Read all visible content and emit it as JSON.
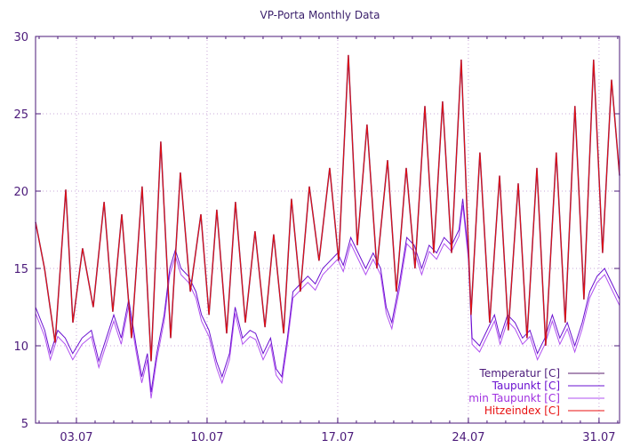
{
  "chart_data": {
    "type": "line",
    "title": "VP-Porta Monthly Data",
    "xlabel": "",
    "ylabel": "",
    "xlim": [
      0.81,
      32.1
    ],
    "ylim": [
      5,
      30
    ],
    "grid": true,
    "legend_position": "bottom-right",
    "y_ticks": [
      5,
      10,
      15,
      20,
      25,
      30
    ],
    "x_ticks": [
      {
        "day": 3,
        "label": "03.07"
      },
      {
        "day": 10,
        "label": "10.07"
      },
      {
        "day": 17,
        "label": "17.07"
      },
      {
        "day": 24,
        "label": "24.07"
      },
      {
        "day": 31,
        "label": "31.07"
      }
    ],
    "colors": {
      "axis": "#4b1a7a",
      "grid": "#c9a8d8",
      "Temperatur": "#5a1e6e",
      "Taupunkt": "#6a10d0",
      "min Taupunkt": "#b050f0",
      "Hitzeindex": "#e81010"
    },
    "temperature": {
      "x": [
        0.81,
        1.29,
        1.86,
        2.43,
        2.81,
        3.33,
        3.9,
        4.48,
        4.95,
        5.43,
        5.95,
        6.52,
        7.0,
        7.52,
        8.05,
        8.57,
        9.1,
        9.67,
        10.1,
        10.52,
        11.05,
        11.52,
        12.05,
        12.57,
        13.1,
        13.57,
        14.1,
        14.52,
        15.0,
        15.48,
        16.0,
        16.57,
        17.05,
        17.57,
        18.05,
        18.57,
        19.1,
        19.67,
        20.14,
        20.67,
        21.14,
        21.67,
        22.14,
        22.62,
        23.1,
        23.62,
        24.14,
        24.62,
        25.14,
        25.67,
        26.14,
        26.67,
        27.14,
        27.67,
        28.14,
        28.71,
        29.19,
        29.71,
        30.19,
        30.71,
        31.19,
        31.67,
        32.1
      ],
      "y": [
        18.0,
        15,
        10.2,
        20.1,
        11.5,
        16.3,
        12.5,
        19.3,
        12.2,
        18.5,
        10.5,
        20.3,
        9.0,
        23.2,
        10.5,
        21.2,
        13.5,
        18.5,
        12.0,
        18.8,
        10.8,
        19.3,
        11.5,
        17.4,
        11.2,
        17.2,
        10.8,
        19.5,
        13.5,
        20.3,
        15.5,
        21.5,
        15.5,
        28.8,
        16.5,
        24.3,
        15,
        22,
        13.5,
        21.5,
        15,
        25.5,
        16,
        25.8,
        16,
        28.5,
        12,
        22.5,
        11.5,
        21,
        11,
        20.5,
        10.5,
        21.5,
        10,
        22.5,
        11.5,
        25.5,
        13,
        28.5,
        16,
        27.2,
        21
      ]
    },
    "dewpoint": {
      "x": [
        0.81,
        1.3,
        1.6,
        2.0,
        2.4,
        2.8,
        3.3,
        3.8,
        4.2,
        4.6,
        5.0,
        5.4,
        5.8,
        6.2,
        6.5,
        6.8,
        7.0,
        7.3,
        7.7,
        8.0,
        8.3,
        8.6,
        9.0,
        9.4,
        9.7,
        10.1,
        10.5,
        10.8,
        11.2,
        11.5,
        11.9,
        12.3,
        12.6,
        13.0,
        13.4,
        13.7,
        14.0,
        14.3,
        14.6,
        15.0,
        15.4,
        15.8,
        16.2,
        16.6,
        17.0,
        17.3,
        17.7,
        18.1,
        18.5,
        18.9,
        19.3,
        19.6,
        19.9,
        20.3,
        20.7,
        21.1,
        21.5,
        21.9,
        22.3,
        22.7,
        23.1,
        23.5,
        23.7,
        24.0,
        24.2,
        24.6,
        25.0,
        25.4,
        25.7,
        26.1,
        26.5,
        26.9,
        27.3,
        27.7,
        28.1,
        28.5,
        28.9,
        29.3,
        29.7,
        30.1,
        30.5,
        30.9,
        31.3,
        31.7,
        32.1
      ],
      "y": [
        12.5,
        11,
        9.5,
        11,
        10.5,
        9.5,
        10.5,
        11,
        9,
        10.5,
        12,
        10.5,
        13,
        10,
        8,
        9.5,
        7,
        9.5,
        12,
        15,
        16.2,
        15,
        14.5,
        13.5,
        12,
        11,
        9,
        8,
        9.5,
        12.5,
        10.5,
        11,
        10.8,
        9.5,
        10.5,
        8.5,
        8,
        10.5,
        13.5,
        14,
        14.5,
        14,
        15,
        15.5,
        16,
        15.2,
        17,
        16,
        15,
        16,
        15,
        12.5,
        11.5,
        14,
        17,
        16.5,
        15,
        16.5,
        16,
        17,
        16.5,
        17.5,
        19.5,
        16,
        10.5,
        10,
        11,
        12,
        10.5,
        12,
        11.5,
        10.5,
        11,
        9.5,
        10.5,
        12,
        10.5,
        11.5,
        10,
        11.5,
        13.5,
        14.5,
        15,
        14,
        13
      ]
    },
    "min_dewpoint_offset": -0.4,
    "series": [
      {
        "name": "Temperatur [C]",
        "source": "temperature"
      },
      {
        "name": "Taupunkt [C]",
        "source": "dewpoint"
      },
      {
        "name": "min Taupunkt [C]",
        "source": "dewpoint_min"
      },
      {
        "name": "Hitzeindex [C]",
        "source": "temperature"
      }
    ]
  }
}
